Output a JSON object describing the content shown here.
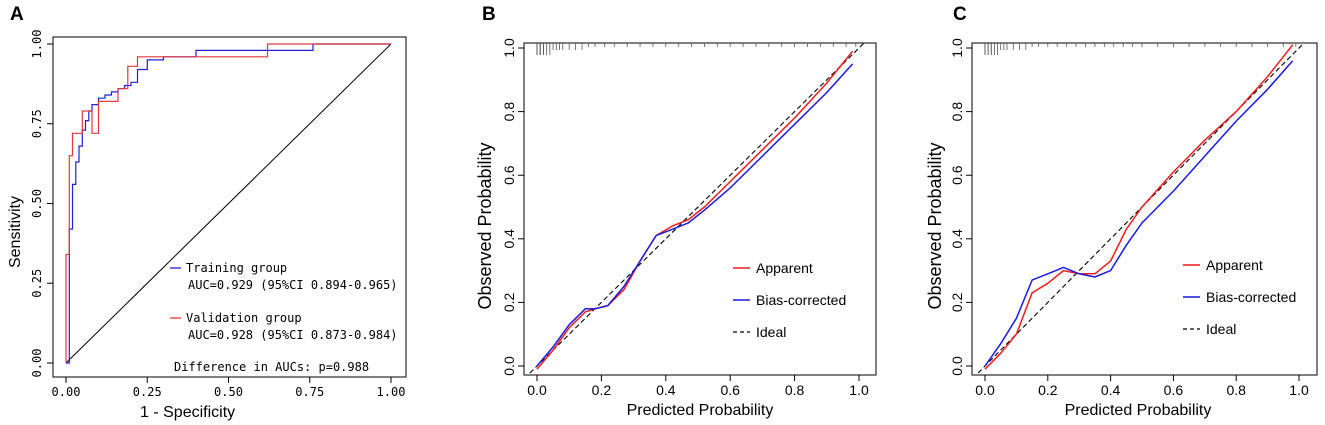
{
  "panels": {
    "A": {
      "label": "A"
    },
    "B": {
      "label": "B"
    },
    "C": {
      "label": "C"
    }
  },
  "colors": {
    "training": "#1f1fdd",
    "validation": "#e0383c",
    "apparent": "#ee1c1c",
    "bias_corrected": "#1a1ae0",
    "ideal": "#000000"
  },
  "chart_data": [
    {
      "panel": "A",
      "type": "line",
      "title": "",
      "xlabel": "1 - Specificity",
      "ylabel": "Sensitivity",
      "xlim": [
        0,
        1
      ],
      "ylim": [
        0,
        1
      ],
      "xticks": [
        "0.00",
        "0.25",
        "0.50",
        "0.75",
        "1.00"
      ],
      "yticks": [
        "0.00",
        "0.25",
        "0.50",
        "0.75",
        "1.00"
      ],
      "series": [
        {
          "name": "Training group",
          "x": [
            0,
            0.01,
            0.01,
            0.02,
            0.02,
            0.03,
            0.03,
            0.04,
            0.04,
            0.05,
            0.05,
            0.06,
            0.06,
            0.07,
            0.07,
            0.08,
            0.08,
            0.1,
            0.1,
            0.12,
            0.12,
            0.14,
            0.14,
            0.16,
            0.16,
            0.18,
            0.18,
            0.2,
            0.2,
            0.22,
            0.22,
            0.25,
            0.25,
            0.3,
            0.3,
            0.4,
            0.4,
            0.6,
            0.6,
            0.76,
            0.76,
            1
          ],
          "y": [
            0,
            0,
            0.42,
            0.42,
            0.56,
            0.56,
            0.63,
            0.63,
            0.68,
            0.68,
            0.73,
            0.73,
            0.76,
            0.76,
            0.79,
            0.79,
            0.81,
            0.81,
            0.83,
            0.83,
            0.84,
            0.84,
            0.85,
            0.85,
            0.86,
            0.86,
            0.87,
            0.87,
            0.88,
            0.88,
            0.92,
            0.92,
            0.95,
            0.95,
            0.96,
            0.96,
            0.98,
            0.98,
            0.98,
            0.98,
            1.0,
            1.0
          ]
        },
        {
          "name": "Validation group",
          "x": [
            0,
            0,
            0.01,
            0.01,
            0.02,
            0.02,
            0.05,
            0.05,
            0.08,
            0.08,
            0.1,
            0.1,
            0.16,
            0.16,
            0.19,
            0.19,
            0.22,
            0.22,
            0.3,
            0.3,
            0.62,
            0.62,
            1
          ],
          "y": [
            0,
            0.34,
            0.34,
            0.65,
            0.65,
            0.72,
            0.72,
            0.79,
            0.79,
            0.72,
            0.72,
            0.82,
            0.82,
            0.86,
            0.86,
            0.93,
            0.93,
            0.96,
            0.96,
            0.96,
            0.96,
            1.0,
            1.0
          ]
        }
      ],
      "reference_line": {
        "x": [
          0,
          1
        ],
        "y": [
          0,
          1
        ]
      },
      "annotations": {
        "training_name": "Training group",
        "training_auc": "AUC=0.929 (95%CI 0.894-0.965)",
        "validation_name": "Validation group",
        "validation_auc": "AUC=0.928 (95%CI 0.873-0.984)",
        "difference": "Difference in AUCs: p=0.988"
      }
    },
    {
      "panel": "B",
      "type": "line",
      "title": "",
      "xlabel": "Predicted Probability",
      "ylabel": "Observed Probability",
      "xlim": [
        0,
        1
      ],
      "ylim": [
        0,
        1
      ],
      "xticks": [
        "0.0",
        "0.2",
        "0.4",
        "0.6",
        "0.8",
        "1.0"
      ],
      "yticks": [
        "0.0",
        "0.2",
        "0.4",
        "0.6",
        "0.8",
        "1.0"
      ],
      "series": [
        {
          "name": "Apparent",
          "x": [
            0,
            0.05,
            0.1,
            0.15,
            0.18,
            0.22,
            0.27,
            0.32,
            0.37,
            0.42,
            0.47,
            0.52,
            0.6,
            0.7,
            0.8,
            0.9,
            0.98
          ],
          "y": [
            -0.01,
            0.05,
            0.12,
            0.17,
            0.18,
            0.19,
            0.24,
            0.33,
            0.41,
            0.44,
            0.46,
            0.5,
            0.58,
            0.68,
            0.78,
            0.89,
            0.99
          ]
        },
        {
          "name": "Bias-corrected",
          "x": [
            0,
            0.05,
            0.1,
            0.15,
            0.18,
            0.22,
            0.27,
            0.32,
            0.37,
            0.42,
            0.47,
            0.52,
            0.6,
            0.7,
            0.8,
            0.9,
            0.98
          ],
          "y": [
            0.0,
            0.06,
            0.13,
            0.18,
            0.18,
            0.19,
            0.25,
            0.33,
            0.41,
            0.43,
            0.45,
            0.49,
            0.56,
            0.66,
            0.76,
            0.86,
            0.95
          ]
        }
      ],
      "ideal": {
        "name": "Ideal",
        "x": [
          -0.04,
          1.06
        ],
        "y": [
          -0.04,
          1.06
        ]
      },
      "rug": [
        0.0,
        0.0,
        0.0,
        0.0,
        0.0,
        0.01,
        0.01,
        0.01,
        0.02,
        0.02,
        0.03,
        0.04,
        0.05,
        0.06,
        0.07,
        0.08,
        0.1,
        0.12,
        0.14,
        0.16,
        0.18,
        0.21,
        0.24,
        0.28,
        0.32,
        0.36,
        0.4,
        0.44,
        0.48,
        0.52,
        0.56,
        0.6,
        0.64,
        0.68,
        0.72,
        0.76,
        0.8,
        0.84,
        0.88,
        0.92,
        0.96,
        0.99
      ],
      "legend": [
        "Apparent",
        "Bias-corrected",
        "Ideal"
      ]
    },
    {
      "panel": "C",
      "type": "line",
      "title": "",
      "xlabel": "Predicted Probability",
      "ylabel": "Observed Probability",
      "xlim": [
        0,
        1
      ],
      "ylim": [
        0,
        1
      ],
      "xticks": [
        "0.0",
        "0.2",
        "0.4",
        "0.6",
        "0.8",
        "1.0"
      ],
      "yticks": [
        "0.0",
        "0.2",
        "0.4",
        "0.6",
        "0.8",
        "1.0"
      ],
      "series": [
        {
          "name": "Apparent",
          "x": [
            0,
            0.05,
            0.1,
            0.15,
            0.2,
            0.25,
            0.3,
            0.35,
            0.4,
            0.45,
            0.5,
            0.6,
            0.7,
            0.8,
            0.9,
            0.98
          ],
          "y": [
            -0.01,
            0.04,
            0.1,
            0.23,
            0.26,
            0.3,
            0.29,
            0.29,
            0.33,
            0.43,
            0.5,
            0.61,
            0.71,
            0.8,
            0.91,
            1.01
          ]
        },
        {
          "name": "Bias-corrected",
          "x": [
            0,
            0.05,
            0.1,
            0.15,
            0.2,
            0.25,
            0.3,
            0.35,
            0.4,
            0.45,
            0.5,
            0.6,
            0.7,
            0.8,
            0.9,
            0.98
          ],
          "y": [
            0.0,
            0.07,
            0.15,
            0.27,
            0.29,
            0.31,
            0.29,
            0.28,
            0.3,
            0.38,
            0.45,
            0.55,
            0.66,
            0.77,
            0.87,
            0.96
          ]
        }
      ],
      "ideal": {
        "name": "Ideal",
        "x": [
          -0.04,
          1.06
        ],
        "y": [
          -0.04,
          1.06
        ]
      },
      "rug": [
        0.0,
        0.0,
        0.01,
        0.01,
        0.02,
        0.02,
        0.03,
        0.04,
        0.05,
        0.06,
        0.07,
        0.09,
        0.11,
        0.13,
        0.15,
        0.17,
        0.2,
        0.23,
        0.26,
        0.29,
        0.32,
        0.35,
        0.38,
        0.41,
        0.44,
        0.47,
        0.5,
        0.55,
        0.6,
        0.65,
        0.7,
        0.75,
        0.8,
        0.85,
        0.9,
        0.95,
        0.99
      ],
      "legend": [
        "Apparent",
        "Bias-corrected",
        "Ideal"
      ]
    }
  ]
}
